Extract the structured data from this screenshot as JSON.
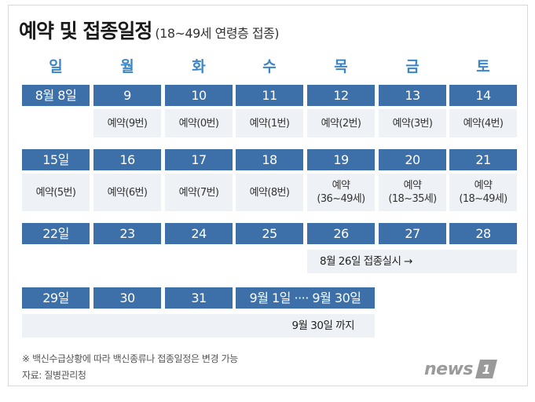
{
  "title": {
    "main": "예약 및 접종일정",
    "subtitle": "(18~49세 연령층 접종)"
  },
  "weekdays": [
    "일",
    "월",
    "화",
    "수",
    "목",
    "금",
    "토"
  ],
  "week1": {
    "dates": [
      "8월 8일",
      "9",
      "10",
      "11",
      "12",
      "13",
      "14"
    ],
    "subs": [
      "",
      "예약(9번)",
      "예약(0번)",
      "예약(1번)",
      "예약(2번)",
      "예약(3번)",
      "예약(4번)"
    ]
  },
  "week2": {
    "dates": [
      "15일",
      "16",
      "17",
      "18",
      "19",
      "20",
      "21"
    ],
    "subs": [
      "예약(5번)",
      "예약(6번)",
      "예약(7번)",
      "예약(8번)",
      "예약\n(36~49세)",
      "예약\n(18~35세)",
      "예약\n(18~49세)"
    ]
  },
  "week3": {
    "dates": [
      "22일",
      "23",
      "24",
      "25",
      "26",
      "27",
      "28"
    ],
    "banner": "8월 26일 접종실시 →"
  },
  "week4": {
    "dates": [
      "29일",
      "30",
      "31"
    ],
    "range": "9월 1일 ···· 9월 30일",
    "banner": "9월 30일 까지"
  },
  "notes": {
    "footnote": "※ 백신수급상황에 따라 백신종류나 접종일정은 변경 가능",
    "source": "자료: 질병관리청"
  },
  "logo": {
    "word": "news",
    "number": "1"
  },
  "colors": {
    "cell_blue": "#3d6fa8",
    "weekday_blue": "#3d86c6",
    "sub_bg": "#eef1f6"
  }
}
